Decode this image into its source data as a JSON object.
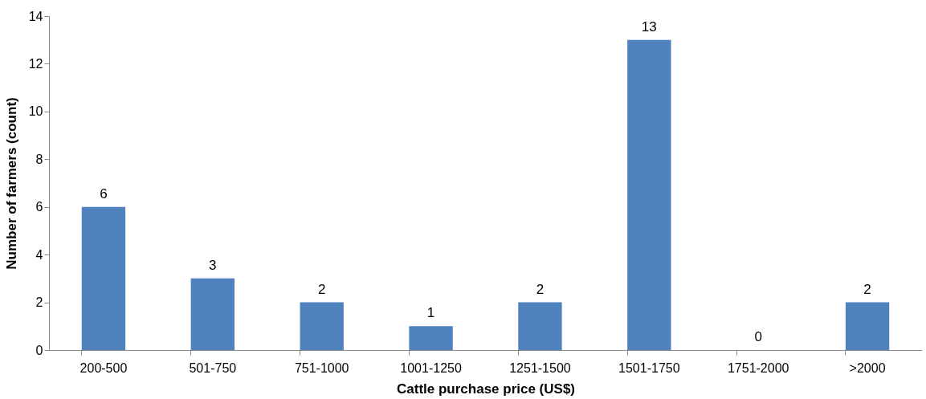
{
  "chart_data": {
    "type": "bar",
    "xlabel": "Cattle purchase price (US$)",
    "ylabel": "Number of farmers (count)",
    "categories": [
      "200-500",
      "501-750",
      "751-1000",
      "1001-1250",
      "1251-1500",
      "1501-1750",
      "1751-2000",
      ">2000"
    ],
    "values": [
      6,
      3,
      2,
      1,
      2,
      13,
      0,
      2
    ],
    "color": "#4f81bd",
    "ylim": [
      0,
      14
    ],
    "yticks": [
      0,
      2,
      4,
      6,
      8,
      10,
      12,
      14
    ],
    "grid": false,
    "data_labels": true
  }
}
